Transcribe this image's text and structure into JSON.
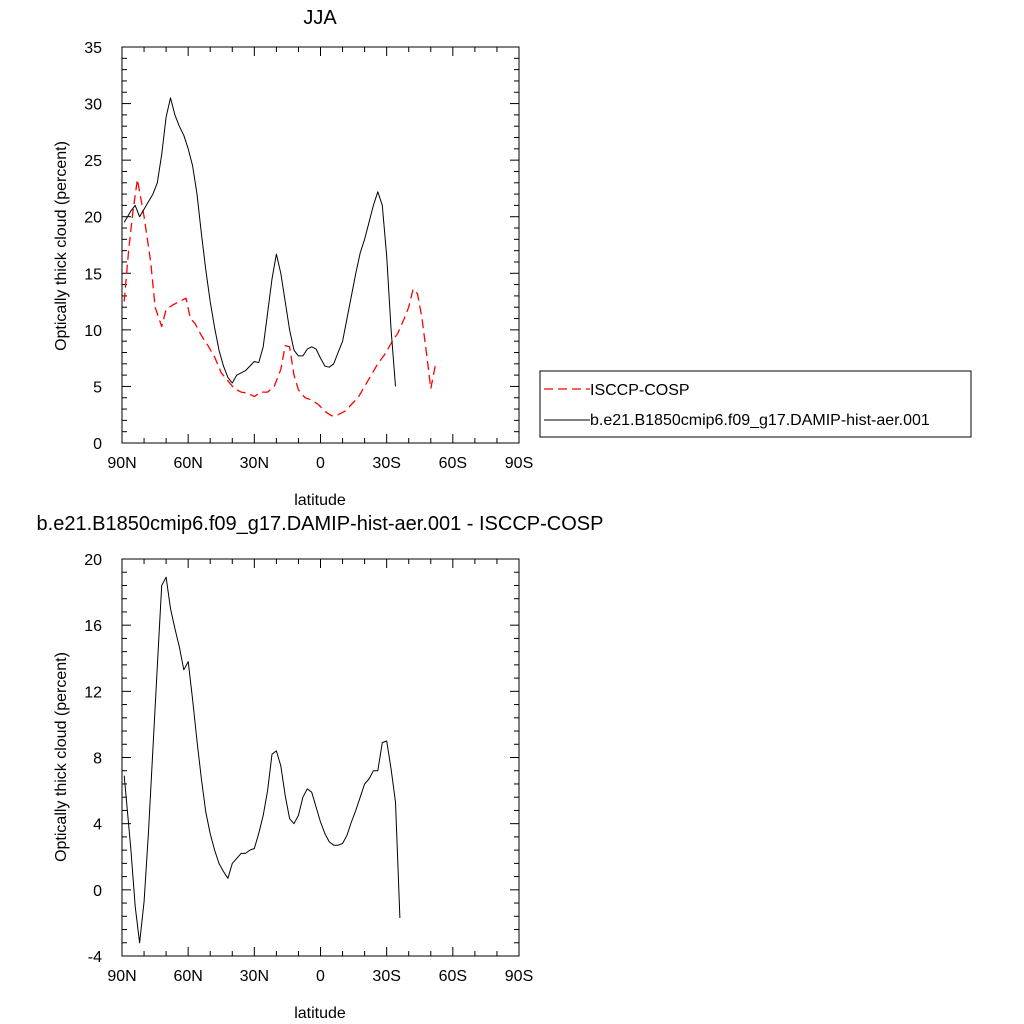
{
  "chart_data": [
    {
      "type": "line",
      "title": "JJA",
      "xlabel": "latitude",
      "ylabel": "Optically thick cloud (percent)",
      "xlim": [
        90,
        -90
      ],
      "ylim": [
        0,
        35
      ],
      "xticks": [
        {
          "value": 90,
          "label": "90N"
        },
        {
          "value": 60,
          "label": "60N"
        },
        {
          "value": 30,
          "label": "30N"
        },
        {
          "value": 0,
          "label": "0"
        },
        {
          "value": -30,
          "label": "30S"
        },
        {
          "value": -60,
          "label": "60S"
        },
        {
          "value": -90,
          "label": "90S"
        }
      ],
      "yticks": [
        {
          "value": 0,
          "label": "0"
        },
        {
          "value": 5,
          "label": "5"
        },
        {
          "value": 10,
          "label": "10"
        },
        {
          "value": 15,
          "label": "15"
        },
        {
          "value": 20,
          "label": "20"
        },
        {
          "value": 25,
          "label": "25"
        },
        {
          "value": 30,
          "label": "30"
        },
        {
          "value": 35,
          "label": "35"
        }
      ],
      "legend_position": "right, outside plot",
      "series": [
        {
          "name": "ISCCP-COSP",
          "color": "#ff0000",
          "style": "dashed",
          "points": [
            [
              89,
              12.5
            ],
            [
              87,
              17
            ],
            [
              85,
              20.5
            ],
            [
              83,
              23.3
            ],
            [
              80,
              20
            ],
            [
              77,
              16
            ],
            [
              75,
              12
            ],
            [
              72,
              10.3
            ],
            [
              70,
              11.8
            ],
            [
              67,
              12.2
            ],
            [
              64,
              12.5
            ],
            [
              61,
              12.8
            ],
            [
              59,
              11
            ],
            [
              57,
              10.6
            ],
            [
              54,
              9.5
            ],
            [
              51,
              8.6
            ],
            [
              48,
              7.6
            ],
            [
              45,
              6.2
            ],
            [
              42,
              5.5
            ],
            [
              39,
              4.8
            ],
            [
              36,
              4.5
            ],
            [
              33,
              4.4
            ],
            [
              30,
              4.1
            ],
            [
              27,
              4.5
            ],
            [
              24,
              4.5
            ],
            [
              21,
              5
            ],
            [
              18,
              6.5
            ],
            [
              16,
              8.6
            ],
            [
              14,
              8.5
            ],
            [
              12,
              6
            ],
            [
              10,
              4.7
            ],
            [
              7,
              4
            ],
            [
              4,
              3.8
            ],
            [
              1,
              3.4
            ],
            [
              -2,
              2.8
            ],
            [
              -5,
              2.4
            ],
            [
              -8,
              2.5
            ],
            [
              -11,
              2.8
            ],
            [
              -14,
              3.4
            ],
            [
              -17,
              4
            ],
            [
              -20,
              5
            ],
            [
              -23,
              6
            ],
            [
              -26,
              7
            ],
            [
              -29,
              7.8
            ],
            [
              -32,
              8.8
            ],
            [
              -35,
              9.7
            ],
            [
              -38,
              11
            ],
            [
              -40,
              12
            ],
            [
              -42,
              13.6
            ],
            [
              -44,
              13.2
            ],
            [
              -46,
              11
            ],
            [
              -48,
              8
            ],
            [
              -50,
              4.8
            ],
            [
              -52,
              6.8
            ]
          ]
        },
        {
          "name": "b.e21.B1850cmip6.f09_g17.DAMIP-hist-aer.001",
          "color": "#000000",
          "style": "solid",
          "points": [
            [
              89,
              19.5
            ],
            [
              86,
              20.5
            ],
            [
              84,
              21
            ],
            [
              82,
              20
            ],
            [
              79,
              21
            ],
            [
              76,
              22
            ],
            [
              74,
              23
            ],
            [
              72,
              25.5
            ],
            [
              70,
              28.8
            ],
            [
              68,
              30.5
            ],
            [
              66,
              29
            ],
            [
              64,
              28
            ],
            [
              62,
              27.2
            ],
            [
              60,
              26
            ],
            [
              58,
              24.5
            ],
            [
              56,
              22
            ],
            [
              54,
              18.5
            ],
            [
              52,
              15.3
            ],
            [
              50,
              12.5
            ],
            [
              48,
              10.2
            ],
            [
              46,
              8.2
            ],
            [
              44,
              6.8
            ],
            [
              42,
              5.8
            ],
            [
              40,
              5.3
            ],
            [
              38,
              6
            ],
            [
              36,
              6.2
            ],
            [
              34,
              6.4
            ],
            [
              32,
              6.8
            ],
            [
              30,
              7.2
            ],
            [
              28,
              7.1
            ],
            [
              26,
              8.5
            ],
            [
              24,
              11.5
            ],
            [
              22,
              14.5
            ],
            [
              20,
              16.7
            ],
            [
              18,
              15
            ],
            [
              16,
              12.5
            ],
            [
              14,
              10
            ],
            [
              12,
              8.2
            ],
            [
              10,
              7.7
            ],
            [
              8,
              7.7
            ],
            [
              6,
              8.3
            ],
            [
              4,
              8.5
            ],
            [
              2,
              8.3
            ],
            [
              0,
              7.5
            ],
            [
              -2,
              6.8
            ],
            [
              -4,
              6.7
            ],
            [
              -6,
              7
            ],
            [
              -8,
              8
            ],
            [
              -10,
              9
            ],
            [
              -12,
              11
            ],
            [
              -14,
              13
            ],
            [
              -16,
              15
            ],
            [
              -18,
              16.8
            ],
            [
              -20,
              18
            ],
            [
              -22,
              19.5
            ],
            [
              -24,
              21
            ],
            [
              -26,
              22.2
            ],
            [
              -28,
              21
            ],
            [
              -30,
              16.5
            ],
            [
              -32,
              10
            ],
            [
              -34,
              5
            ]
          ]
        }
      ]
    },
    {
      "type": "line",
      "title": "b.e21.B1850cmip6.f09_g17.DAMIP-hist-aer.001 - ISCCP-COSP",
      "xlabel": "latitude",
      "ylabel": "Optically thick cloud (percent)",
      "xlim": [
        90,
        -90
      ],
      "ylim": [
        -4,
        20
      ],
      "xticks": [
        {
          "value": 90,
          "label": "90N"
        },
        {
          "value": 60,
          "label": "60N"
        },
        {
          "value": 30,
          "label": "30N"
        },
        {
          "value": 0,
          "label": "0"
        },
        {
          "value": -30,
          "label": "30S"
        },
        {
          "value": -60,
          "label": "60S"
        },
        {
          "value": -90,
          "label": "90S"
        }
      ],
      "yticks": [
        {
          "value": -4,
          "label": "-4"
        },
        {
          "value": 0,
          "label": "0"
        },
        {
          "value": 4,
          "label": "4"
        },
        {
          "value": 8,
          "label": "8"
        },
        {
          "value": 12,
          "label": "12"
        },
        {
          "value": 16,
          "label": "16"
        },
        {
          "value": 20,
          "label": "20"
        }
      ],
      "series": [
        {
          "color": "#000000",
          "style": "solid",
          "points": [
            [
              89,
              6.9
            ],
            [
              86,
              2.5
            ],
            [
              84,
              -1
            ],
            [
              82,
              -3.2
            ],
            [
              80,
              -0.7
            ],
            [
              78,
              3.5
            ],
            [
              76,
              8.5
            ],
            [
              74,
              13.5
            ],
            [
              72,
              18.4
            ],
            [
              70,
              18.9
            ],
            [
              68,
              17
            ],
            [
              66,
              15.8
            ],
            [
              64,
              14.7
            ],
            [
              62,
              13.3
            ],
            [
              60,
              13.8
            ],
            [
              58,
              11.5
            ],
            [
              56,
              9
            ],
            [
              54,
              6.7
            ],
            [
              52,
              4.7
            ],
            [
              50,
              3.4
            ],
            [
              48,
              2.4
            ],
            [
              46,
              1.6
            ],
            [
              44,
              1.1
            ],
            [
              42,
              0.7
            ],
            [
              40,
              1.6
            ],
            [
              38,
              1.9
            ],
            [
              36,
              2.2
            ],
            [
              34,
              2.2
            ],
            [
              32,
              2.4
            ],
            [
              30,
              2.5
            ],
            [
              28,
              3.4
            ],
            [
              26,
              4.5
            ],
            [
              24,
              6
            ],
            [
              22,
              8.2
            ],
            [
              20,
              8.4
            ],
            [
              18,
              7.5
            ],
            [
              16,
              5.7
            ],
            [
              14,
              4.3
            ],
            [
              12,
              4
            ],
            [
              10,
              4.5
            ],
            [
              8,
              5.6
            ],
            [
              6,
              6.1
            ],
            [
              4,
              5.9
            ],
            [
              2,
              5
            ],
            [
              0,
              4.1
            ],
            [
              -2,
              3.4
            ],
            [
              -4,
              2.9
            ],
            [
              -6,
              2.7
            ],
            [
              -8,
              2.7
            ],
            [
              -10,
              2.8
            ],
            [
              -12,
              3.3
            ],
            [
              -14,
              4.1
            ],
            [
              -16,
              4.8
            ],
            [
              -18,
              5.6
            ],
            [
              -20,
              6.4
            ],
            [
              -22,
              6.7
            ],
            [
              -24,
              7.2
            ],
            [
              -26,
              7.2
            ],
            [
              -28,
              8.9
            ],
            [
              -30,
              9
            ],
            [
              -32,
              7.3
            ],
            [
              -34,
              5.3
            ],
            [
              -36,
              -1.7
            ]
          ]
        }
      ]
    }
  ]
}
